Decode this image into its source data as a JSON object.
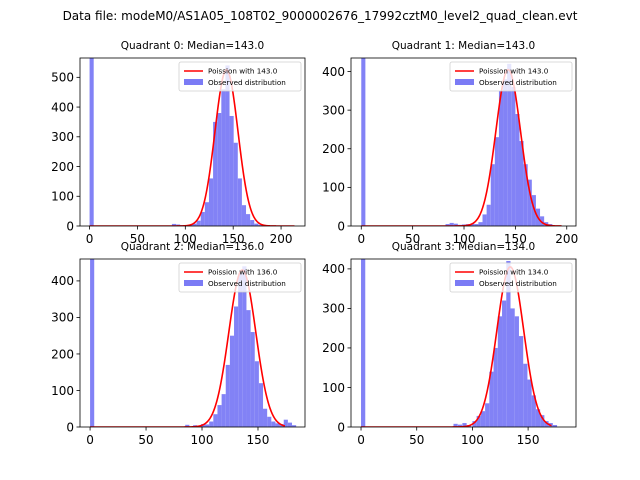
{
  "chart_data": {
    "suptitle": "Data file: modeM0/AS1A05_108T02_9000002676_17992cztM0_level2_quad_clean.evt",
    "colors": {
      "hist": "#7b7bf5",
      "fit": "#ff0000",
      "axis": "#000000"
    },
    "panels": [
      {
        "type": "bar+line",
        "title": "Quadrant 0: Median=143.0",
        "xlim": [
          -10,
          225
        ],
        "ylim": [
          0,
          565
        ],
        "xticks": [
          0,
          50,
          100,
          150,
          200
        ],
        "yticks": [
          0,
          100,
          200,
          300,
          400,
          500
        ],
        "legend": {
          "fit_label": "Poission with 143.0",
          "hist_label": "Observed distribution",
          "position": "top-right"
        },
        "fit": {
          "mean": 143.0,
          "peak": 525,
          "sigma": 12.0,
          "x_start": 0,
          "x_end": 214
        },
        "bins": [
          [
            0,
            4.3,
            565
          ],
          [
            86,
            4.3,
            7
          ],
          [
            90.3,
            4.3,
            5
          ],
          [
            94.6,
            4.3,
            3
          ],
          [
            98.9,
            4.3,
            3
          ],
          [
            103.2,
            4.3,
            5
          ],
          [
            107.5,
            4.3,
            8
          ],
          [
            111.8,
            4.3,
            18
          ],
          [
            116.1,
            4.3,
            47
          ],
          [
            120.4,
            4.3,
            80
          ],
          [
            124.7,
            4.3,
            160
          ],
          [
            129,
            4.3,
            350
          ],
          [
            133.3,
            4.3,
            380
          ],
          [
            137.6,
            4.3,
            460
          ],
          [
            141.9,
            4.3,
            540
          ],
          [
            146.2,
            4.3,
            370
          ],
          [
            150.5,
            4.3,
            280
          ],
          [
            154.8,
            4.3,
            160
          ],
          [
            159.1,
            4.3,
            70
          ],
          [
            163.4,
            4.3,
            40
          ],
          [
            167.7,
            4.3,
            20
          ],
          [
            172,
            4.3,
            8
          ],
          [
            176.3,
            4.3,
            4
          ]
        ]
      },
      {
        "type": "bar+line",
        "title": "Quadrant 1: Median=143.0",
        "xlim": [
          -10,
          209
        ],
        "ylim": [
          0,
          435
        ],
        "xticks": [
          0,
          50,
          100,
          150,
          200
        ],
        "yticks": [
          0,
          100,
          200,
          300,
          400
        ],
        "legend": {
          "fit_label": "Poission with 143.0",
          "hist_label": "Observed distribution",
          "position": "top-right"
        },
        "fit": {
          "mean": 143.0,
          "peak": 405,
          "sigma": 12.0,
          "x_start": 0,
          "x_end": 195
        },
        "bins": [
          [
            0,
            4.0,
            435
          ],
          [
            82,
            4.0,
            5
          ],
          [
            86,
            4.0,
            8
          ],
          [
            90,
            4.0,
            6
          ],
          [
            94,
            4.0,
            3
          ],
          [
            98,
            4.0,
            4
          ],
          [
            102,
            4.0,
            5
          ],
          [
            106,
            4.0,
            6
          ],
          [
            110,
            4.0,
            5
          ],
          [
            114,
            4.0,
            10
          ],
          [
            118,
            4.0,
            30
          ],
          [
            122,
            4.0,
            55
          ],
          [
            126,
            4.0,
            160
          ],
          [
            130,
            4.0,
            230
          ],
          [
            134,
            4.0,
            350
          ],
          [
            138,
            4.0,
            380
          ],
          [
            142,
            4.0,
            420
          ],
          [
            146,
            4.0,
            360
          ],
          [
            150,
            4.0,
            290
          ],
          [
            154,
            4.0,
            220
          ],
          [
            158,
            4.0,
            160
          ],
          [
            162,
            4.0,
            120
          ],
          [
            166,
            4.0,
            80
          ],
          [
            170,
            4.0,
            45
          ],
          [
            174,
            4.0,
            25
          ],
          [
            178,
            4.0,
            10
          ],
          [
            182,
            4.0,
            5
          ]
        ]
      },
      {
        "type": "bar+line",
        "title": "Quadrant 2: Median=136.0",
        "xlim": [
          -9,
          192
        ],
        "ylim": [
          0,
          460
        ],
        "xticks": [
          0,
          50,
          100,
          150
        ],
        "yticks": [
          0,
          100,
          200,
          300,
          400
        ],
        "legend": {
          "fit_label": "Poission with 136.0",
          "hist_label": "Observed distribution",
          "position": "top-right"
        },
        "fit": {
          "mean": 136.0,
          "peak": 430,
          "sigma": 12.0,
          "x_start": 0,
          "x_end": 174
        },
        "bins": [
          [
            0,
            3.7,
            460
          ],
          [
            85,
            3.7,
            6
          ],
          [
            92,
            3.7,
            5
          ],
          [
            99,
            3.7,
            8
          ],
          [
            102.7,
            3.7,
            7
          ],
          [
            106.4,
            3.7,
            15
          ],
          [
            110.1,
            3.7,
            35
          ],
          [
            113.8,
            3.7,
            60
          ],
          [
            117.5,
            3.7,
            90
          ],
          [
            121.2,
            3.7,
            170
          ],
          [
            124.9,
            3.7,
            250
          ],
          [
            128.6,
            3.7,
            330
          ],
          [
            132.3,
            3.7,
            420
          ],
          [
            136,
            3.7,
            440
          ],
          [
            139.7,
            3.7,
            320
          ],
          [
            143.4,
            3.7,
            260
          ],
          [
            147.1,
            3.7,
            180
          ],
          [
            150.8,
            3.7,
            120
          ],
          [
            154.5,
            3.7,
            50
          ],
          [
            158.2,
            3.7,
            28
          ],
          [
            161.9,
            3.7,
            15
          ],
          [
            165.6,
            3.7,
            10
          ],
          [
            169.3,
            3.7,
            8
          ],
          [
            173,
            3.7,
            20
          ],
          [
            176.7,
            3.7,
            12
          ],
          [
            180.4,
            3.7,
            5
          ]
        ]
      },
      {
        "type": "bar+line",
        "title": "Quadrant 3: Median=134.0",
        "xlim": [
          -9,
          193
        ],
        "ylim": [
          0,
          425
        ],
        "xticks": [
          0,
          50,
          100,
          150
        ],
        "yticks": [
          0,
          100,
          200,
          300,
          400
        ],
        "legend": {
          "fit_label": "Poission with 134.0",
          "hist_label": "Observed distribution",
          "position": "top-right"
        },
        "fit": {
          "mean": 134.0,
          "peak": 405,
          "sigma": 12.0,
          "x_start": 0,
          "x_end": 171
        },
        "bins": [
          [
            0,
            3.8,
            425
          ],
          [
            83,
            3.8,
            8
          ],
          [
            87,
            3.8,
            6
          ],
          [
            91,
            3.8,
            10
          ],
          [
            95,
            3.8,
            5
          ],
          [
            100,
            3.8,
            15
          ],
          [
            103.8,
            3.8,
            28
          ],
          [
            107.6,
            3.8,
            40
          ],
          [
            111.4,
            3.8,
            60
          ],
          [
            115.2,
            3.8,
            140
          ],
          [
            119,
            3.8,
            200
          ],
          [
            122.8,
            3.8,
            280
          ],
          [
            126.6,
            3.8,
            320
          ],
          [
            130.4,
            3.8,
            420
          ],
          [
            134.2,
            3.8,
            300
          ],
          [
            138,
            3.8,
            280
          ],
          [
            141.8,
            3.8,
            230
          ],
          [
            145.6,
            3.8,
            160
          ],
          [
            149.4,
            3.8,
            120
          ],
          [
            153.2,
            3.8,
            80
          ],
          [
            157,
            3.8,
            45
          ],
          [
            160.8,
            3.8,
            30
          ],
          [
            164.6,
            3.8,
            15
          ],
          [
            168.4,
            3.8,
            10
          ],
          [
            172.2,
            3.8,
            5
          ]
        ]
      }
    ]
  }
}
